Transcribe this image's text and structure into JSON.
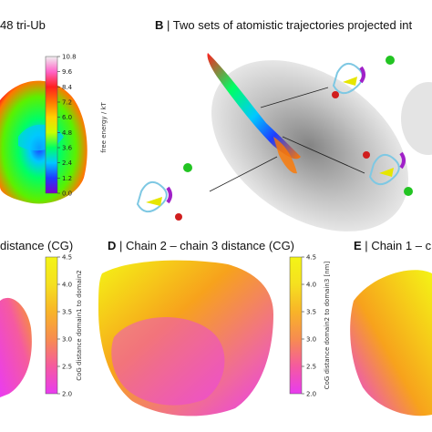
{
  "panels": {
    "A": {
      "title_tail": "48 tri-Ub"
    },
    "B": {
      "letter": "B",
      "sep": "|",
      "title": "Two sets of atomistic trajectories projected int"
    },
    "C": {
      "title_tail": "distance (CG)"
    },
    "D": {
      "letter": "D",
      "sep": "|",
      "title": "Chain 2 – chain 3 distance (CG)"
    },
    "E": {
      "letter": "E",
      "sep": "|",
      "title": "Chain 1 – c"
    }
  },
  "colors": {
    "yellow": "#f4f416",
    "orange": "#f7a21c",
    "magenta": "#ea3cf0",
    "gray": "#9a9a9a"
  },
  "chart_data": [
    {
      "type": "heatmap",
      "panel": "A",
      "colorbar": {
        "label": "free energy / kT",
        "ticks": [
          "10.8",
          "9.6",
          "8.4",
          "7.2",
          "6.0",
          "4.8",
          "3.6",
          "2.4",
          "1.2",
          "0.0"
        ],
        "range": [
          0.0,
          10.8
        ],
        "colormap": [
          "#7a00c8",
          "#1e3cff",
          "#00c8ff",
          "#00ff64",
          "#c8ff00",
          "#ffd200",
          "#ff7800",
          "#ff1e1e",
          "#ff64c8",
          "#f0f0f0"
        ]
      }
    },
    {
      "type": "heatmap",
      "panel": "D",
      "colorbar": {
        "label": "CoG distance domain2 to domain3 [nm]",
        "ticks": [
          "4.5",
          "4.0",
          "3.5",
          "3.0",
          "2.5",
          "2.0"
        ],
        "range": [
          2.0,
          4.5
        ],
        "colormap": [
          "#e83cf0",
          "#f55aa0",
          "#f78c50",
          "#f8b428",
          "#f5e020",
          "#f4f416"
        ]
      }
    },
    {
      "type": "heatmap",
      "panel": "C",
      "colorbar": {
        "label": "CoG distance domain1 to domain2",
        "ticks": [
          "4.5",
          "4.0",
          "3.5",
          "3.0",
          "2.5",
          "2.0"
        ],
        "range": [
          2.0,
          4.5
        ],
        "colormap": [
          "#e83cf0",
          "#f55aa0",
          "#f78c50",
          "#f8b428",
          "#f5e020",
          "#f4f416"
        ]
      }
    }
  ]
}
